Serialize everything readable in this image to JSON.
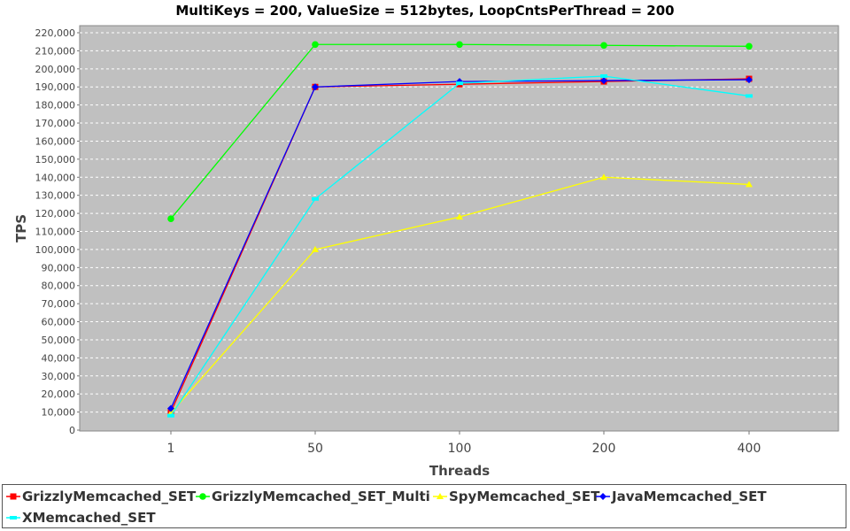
{
  "chart_data": {
    "type": "line",
    "title": "MultiKeys = 200, ValueSize = 512bytes, LoopCntsPerThread = 200",
    "xlabel": "Threads",
    "ylabel": "TPS",
    "categories": [
      "1",
      "50",
      "100",
      "200",
      "400"
    ],
    "ylim": [
      0,
      220000
    ],
    "ytick_step": 10000,
    "ytick_labels": [
      "0",
      "10,000",
      "20,000",
      "30,000",
      "40,000",
      "50,000",
      "60,000",
      "70,000",
      "80,000",
      "90,000",
      "100,000",
      "110,000",
      "120,000",
      "130,000",
      "140,000",
      "150,000",
      "160,000",
      "170,000",
      "180,000",
      "190,000",
      "200,000",
      "210,000",
      "220,000"
    ],
    "grid": true,
    "legend_position": "bottom",
    "series": [
      {
        "name": "GrizzlyMemcached_SET",
        "color": "#ff0000",
        "marker": "square",
        "values": [
          10000,
          190000,
          191500,
          193000,
          194500
        ]
      },
      {
        "name": "GrizzlyMemcached_SET_Multi",
        "color": "#00ff00",
        "marker": "circle",
        "values": [
          117000,
          213500,
          213500,
          213000,
          212500
        ]
      },
      {
        "name": "SpyMemcached_SET",
        "color": "#ffff00",
        "marker": "triangle",
        "values": [
          9500,
          100000,
          118000,
          140000,
          136000
        ]
      },
      {
        "name": "JavaMemcached_SET",
        "color": "#0000ff",
        "marker": "diamond",
        "values": [
          12000,
          190000,
          193000,
          193500,
          194000
        ]
      },
      {
        "name": "XMemcached_SET",
        "color": "#00ffff",
        "marker": "cross",
        "values": [
          8000,
          128000,
          192000,
          196000,
          185000
        ]
      }
    ]
  }
}
